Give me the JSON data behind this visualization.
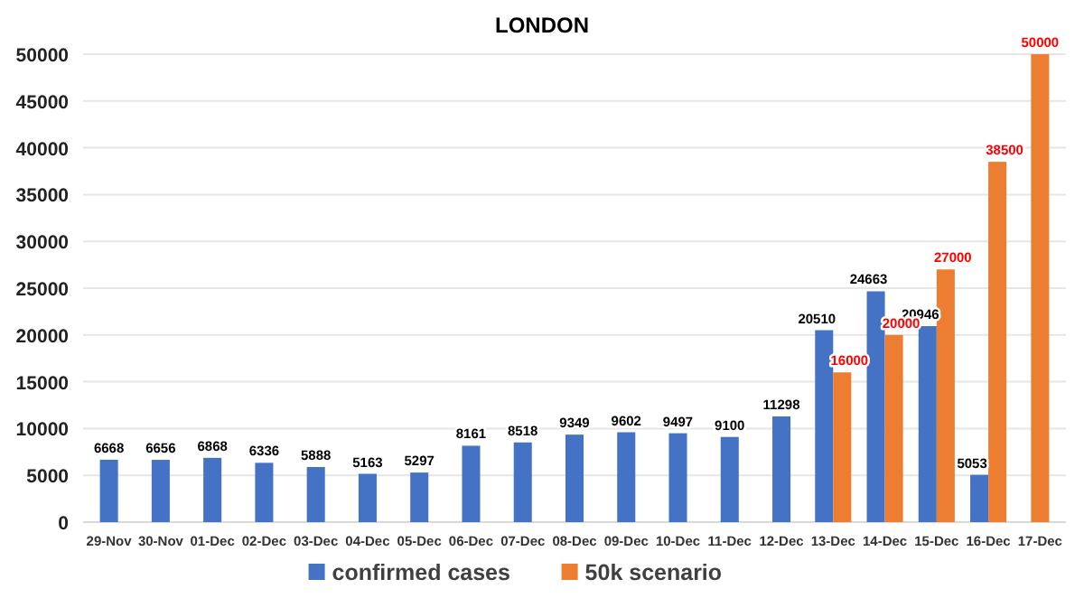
{
  "chart_data": {
    "type": "bar",
    "title": "LONDON",
    "categories": [
      "29-Nov",
      "30-Nov",
      "01-Dec",
      "02-Dec",
      "03-Dec",
      "04-Dec",
      "05-Dec",
      "06-Dec",
      "07-Dec",
      "08-Dec",
      "09-Dec",
      "10-Dec",
      "11-Dec",
      "12-Dec",
      "13-Dec",
      "14-Dec",
      "15-Dec",
      "16-Dec",
      "17-Dec"
    ],
    "series": [
      {
        "name": "confirmed cases",
        "color": "#4472c4",
        "values": [
          6668,
          6656,
          6868,
          6336,
          5888,
          5163,
          5297,
          8161,
          8518,
          9349,
          9602,
          9497,
          9100,
          11298,
          20510,
          24663,
          20946,
          5053,
          null
        ]
      },
      {
        "name": "50k scenario",
        "color": "#ed7d31",
        "values": [
          null,
          null,
          null,
          null,
          null,
          null,
          null,
          null,
          null,
          null,
          null,
          null,
          null,
          null,
          16000,
          20000,
          27000,
          38500,
          50000
        ]
      }
    ],
    "ylim": [
      0,
      50000
    ],
    "yticks": [
      0,
      5000,
      10000,
      15000,
      20000,
      25000,
      30000,
      35000,
      40000,
      45000,
      50000
    ],
    "grid": "y",
    "legend": "bottom",
    "data_labels": true
  }
}
